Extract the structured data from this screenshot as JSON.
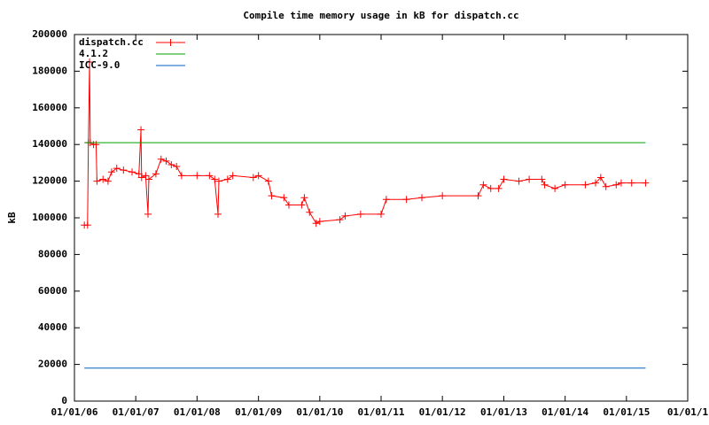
{
  "chart_data": {
    "type": "line",
    "title": "Compile time memory usage in kB for dispatch.cc",
    "y_label": "kB",
    "xlim": [
      "2006-01-01",
      "2016-01-01"
    ],
    "xticks": [
      {
        "value": "2006-01-01",
        "label": "01/01/06"
      },
      {
        "value": "2007-01-01",
        "label": "01/01/07"
      },
      {
        "value": "2008-01-01",
        "label": "01/01/08"
      },
      {
        "value": "2009-01-01",
        "label": "01/01/09"
      },
      {
        "value": "2010-01-01",
        "label": "01/01/10"
      },
      {
        "value": "2011-01-01",
        "label": "01/01/11"
      },
      {
        "value": "2012-01-01",
        "label": "01/01/12"
      },
      {
        "value": "2013-01-01",
        "label": "01/01/13"
      },
      {
        "value": "2014-01-01",
        "label": "01/01/14"
      },
      {
        "value": "2015-01-01",
        "label": "01/01/15"
      },
      {
        "value": "2016-01-01",
        "label": "01/01/1"
      }
    ],
    "ylim": [
      0,
      200000
    ],
    "yticks": [
      0,
      20000,
      40000,
      60000,
      80000,
      100000,
      120000,
      140000,
      160000,
      180000,
      200000
    ],
    "legend": "top left",
    "series": [
      {
        "name": "dispatch.cc",
        "color": "#ff0000",
        "marker": "+",
        "x": [
          "2006-03-01",
          "2006-03-20",
          "2006-03-25",
          "2006-04-01",
          "2006-04-05",
          "2006-04-25",
          "2006-05-10",
          "2006-05-15",
          "2006-06-20",
          "2006-07-20",
          "2006-08-10",
          "2006-09-10",
          "2006-10-20",
          "2006-12-10",
          "2007-01-20",
          "2007-02-01",
          "2007-02-05",
          "2007-03-01",
          "2007-03-15",
          "2007-03-20",
          "2007-05-01",
          "2007-06-01",
          "2007-07-01",
          "2007-08-01",
          "2007-09-01",
          "2007-10-01",
          "2008-01-01",
          "2008-03-15",
          "2008-04-15",
          "2008-05-05",
          "2008-05-10",
          "2008-07-01",
          "2008-08-01",
          "2008-12-01",
          "2009-01-01",
          "2009-03-01",
          "2009-03-20",
          "2009-06-01",
          "2009-07-01",
          "2009-09-15",
          "2009-10-01",
          "2009-11-01",
          "2009-12-10",
          "2010-01-01",
          "2010-05-01",
          "2010-06-01",
          "2010-09-01",
          "2011-01-01",
          "2011-02-01",
          "2011-06-01",
          "2011-09-01",
          "2012-01-01",
          "2012-08-01",
          "2012-09-01",
          "2012-10-15",
          "2012-12-01",
          "2013-01-01",
          "2013-04-01",
          "2013-06-01",
          "2013-08-15",
          "2013-09-01",
          "2013-11-01",
          "2014-01-01",
          "2014-05-01",
          "2014-07-01",
          "2014-08-01",
          "2014-09-01",
          "2014-11-01",
          "2014-12-01",
          "2015-02-01",
          "2015-04-25"
        ],
        "values": [
          96000,
          96000,
          141000,
          185000,
          141000,
          140000,
          140000,
          120000,
          121000,
          120000,
          125000,
          127000,
          126000,
          125000,
          124000,
          148000,
          122000,
          123000,
          102000,
          121000,
          124000,
          132000,
          131000,
          129000,
          128000,
          123000,
          123000,
          123000,
          121000,
          102000,
          120000,
          121000,
          123000,
          122000,
          123000,
          120000,
          112000,
          111000,
          107000,
          107000,
          111000,
          103000,
          97000,
          98000,
          99000,
          101000,
          102000,
          102000,
          110000,
          110000,
          111000,
          112000,
          112000,
          118000,
          116000,
          116000,
          121000,
          120000,
          121000,
          121000,
          118000,
          116000,
          118000,
          118000,
          119000,
          122000,
          117000,
          118000,
          119000,
          119000,
          119000
        ]
      },
      {
        "name": "4.1.2",
        "color": "#00a000",
        "x": [
          "2006-03-01",
          "2015-04-25"
        ],
        "values": [
          141000,
          141000
        ]
      },
      {
        "name": "ICC-9.0",
        "color": "#0060c0",
        "x": [
          "2006-03-01",
          "2015-04-25"
        ],
        "values": [
          18000,
          18000
        ]
      }
    ]
  }
}
